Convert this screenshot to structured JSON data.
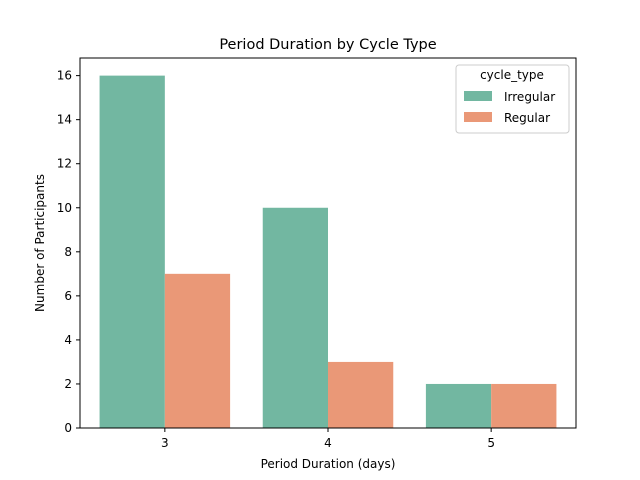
{
  "chart_data": {
    "type": "bar",
    "title": "Period Duration by Cycle Type",
    "xlabel": "Period Duration (days)",
    "ylabel": "Number of Participants",
    "categories": [
      "3",
      "4",
      "5"
    ],
    "series": [
      {
        "name": "Irregular",
        "values": [
          16,
          10,
          2
        ],
        "color": "#72b7a1"
      },
      {
        "name": "Regular",
        "values": [
          7,
          3,
          2
        ],
        "color": "#ea9877"
      }
    ],
    "ylim": [
      0,
      16.8
    ],
    "yticks": [
      0,
      2,
      4,
      6,
      8,
      10,
      12,
      14,
      16
    ],
    "grid": false,
    "legend": {
      "title": "cycle_type",
      "position": "top-right"
    }
  }
}
